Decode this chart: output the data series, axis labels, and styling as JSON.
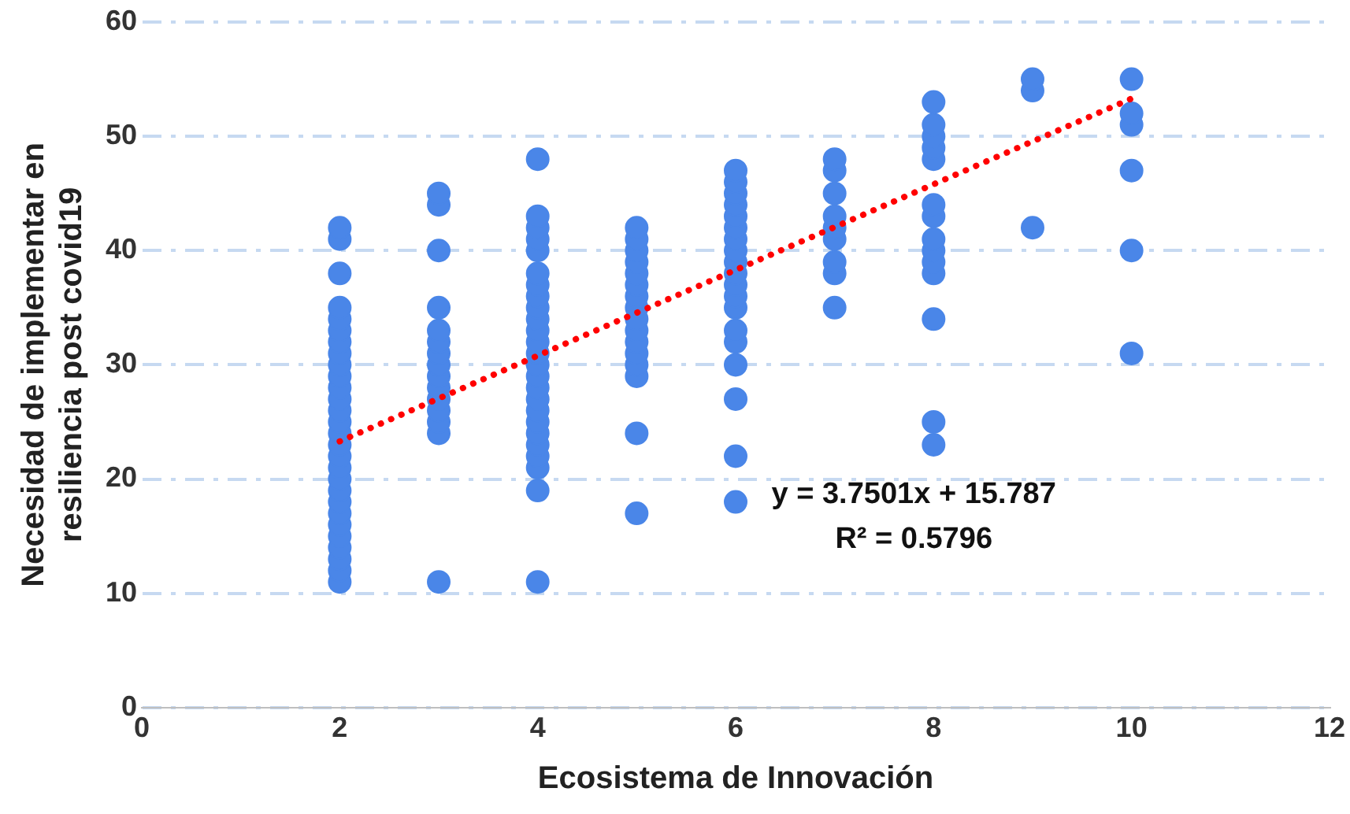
{
  "chart_data": {
    "type": "scatter",
    "xlabel": "Ecosistema de Innovación",
    "ylabel": "Necesidad de implementar en resiliencia post covid19",
    "xlim": [
      0,
      12
    ],
    "xticks": [
      0,
      2,
      4,
      6,
      8,
      10,
      12
    ],
    "ylim": [
      0,
      60
    ],
    "yticks": [
      0,
      10,
      20,
      30,
      40,
      50,
      60
    ],
    "grid": "y",
    "legend": false,
    "marker": "circle",
    "annotations": [
      "y = 3.7501x + 15.787",
      "R² = 0.5796"
    ],
    "series": [
      {
        "type": "scatter",
        "color": "#4a86e8",
        "x": [
          2,
          2,
          2,
          2,
          2,
          2,
          2,
          2,
          2,
          2,
          2,
          2,
          2,
          2,
          2,
          2,
          2,
          2,
          2,
          2,
          2,
          2,
          2,
          2,
          2,
          2,
          2,
          2,
          3,
          3,
          3,
          3,
          3,
          3,
          3,
          3,
          3,
          3,
          3,
          3,
          3,
          3,
          3,
          4,
          4,
          4,
          4,
          4,
          4,
          4,
          4,
          4,
          4,
          4,
          4,
          4,
          4,
          4,
          4,
          4,
          4,
          4,
          4,
          4,
          4,
          4,
          4,
          4,
          5,
          5,
          5,
          5,
          5,
          5,
          5,
          5,
          5,
          5,
          5,
          5,
          5,
          5,
          5,
          5,
          6,
          6,
          6,
          6,
          6,
          6,
          6,
          6,
          6,
          6,
          6,
          6,
          6,
          6,
          6,
          6,
          6,
          6,
          6,
          7,
          7,
          7,
          7,
          7,
          7,
          7,
          7,
          7,
          8,
          8,
          8,
          8,
          8,
          8,
          8,
          8,
          8,
          8,
          8,
          8,
          8,
          8,
          9,
          9,
          9,
          10,
          10,
          10,
          10,
          10,
          10
        ],
        "values": [
          11,
          12,
          13,
          14,
          15,
          16,
          17,
          18,
          19,
          20,
          21,
          22,
          23,
          24,
          25,
          26,
          27,
          28,
          29,
          30,
          31,
          32,
          33,
          34,
          35,
          38,
          41,
          42,
          11,
          24,
          25,
          26,
          27,
          28,
          29,
          30,
          31,
          32,
          33,
          35,
          40,
          44,
          45,
          11,
          19,
          21,
          22,
          23,
          24,
          25,
          26,
          27,
          28,
          29,
          30,
          31,
          32,
          33,
          34,
          35,
          36,
          37,
          38,
          40,
          41,
          42,
          43,
          48,
          17,
          24,
          29,
          30,
          31,
          32,
          33,
          34,
          35,
          36,
          37,
          38,
          39,
          40,
          41,
          42,
          18,
          22,
          27,
          30,
          32,
          33,
          35,
          36,
          37,
          38,
          39,
          40,
          41,
          42,
          43,
          44,
          45,
          46,
          47,
          35,
          38,
          39,
          41,
          42,
          43,
          45,
          47,
          48,
          23,
          25,
          34,
          38,
          39,
          40,
          41,
          43,
          44,
          48,
          49,
          50,
          51,
          53,
          42,
          54,
          55,
          31,
          40,
          47,
          51,
          52,
          55
        ]
      },
      {
        "type": "line",
        "color": "#ff0000",
        "line_style": "dotted",
        "marker": "none",
        "x": [
          2,
          10
        ],
        "values": [
          23.3,
          53.3
        ]
      }
    ]
  }
}
